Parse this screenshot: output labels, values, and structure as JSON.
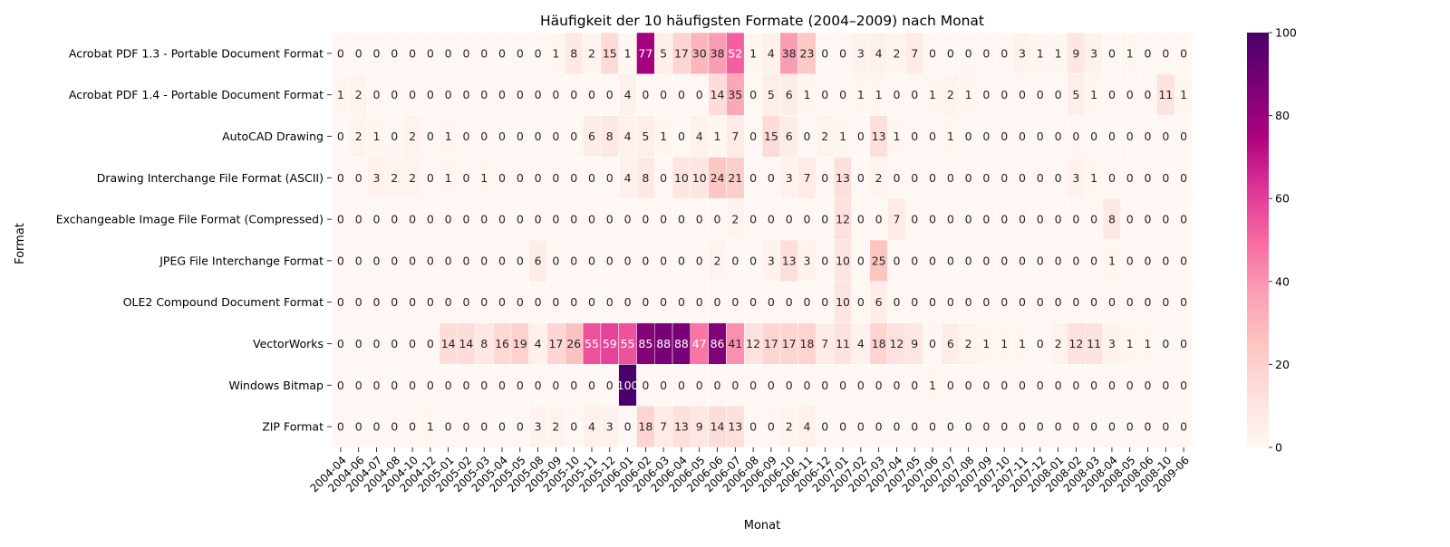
{
  "chart_data": {
    "type": "heatmap",
    "title": "Häufigkeit der 10 häufigsten Formate (2004–2009) nach Monat",
    "xlabel": "Monat",
    "ylabel": "Format",
    "rows": [
      "Acrobat PDF 1.3 - Portable Document Format",
      "Acrobat PDF 1.4 - Portable Document Format",
      "AutoCAD Drawing",
      "Drawing Interchange File Format (ASCII)",
      "Exchangeable Image File Format (Compressed)",
      "JPEG File Interchange Format",
      "OLE2 Compound Document Format",
      "VectorWorks",
      "Windows Bitmap",
      "ZIP Format"
    ],
    "columns": [
      "2004-04",
      "2004-06",
      "2004-07",
      "2004-08",
      "2004-10",
      "2004-12",
      "2005-01",
      "2005-02",
      "2005-03",
      "2005-04",
      "2005-05",
      "2005-08",
      "2005-09",
      "2005-10",
      "2005-11",
      "2005-12",
      "2006-01",
      "2006-02",
      "2006-03",
      "2006-04",
      "2006-05",
      "2006-06",
      "2006-07",
      "2006-08",
      "2006-09",
      "2006-10",
      "2006-11",
      "2006-12",
      "2007-01",
      "2007-02",
      "2007-03",
      "2007-04",
      "2007-05",
      "2007-06",
      "2007-07",
      "2007-08",
      "2007-09",
      "2007-10",
      "2007-11",
      "2007-12",
      "2008-01",
      "2008-02",
      "2008-03",
      "2008-04",
      "2008-05",
      "2008-06",
      "2008-10",
      "2009-06"
    ],
    "values": [
      [
        0,
        0,
        0,
        0,
        0,
        0,
        0,
        0,
        0,
        0,
        0,
        0,
        1,
        8,
        2,
        15,
        1,
        77,
        5,
        17,
        30,
        38,
        52,
        1,
        4,
        38,
        23,
        0,
        0,
        3,
        4,
        2,
        7,
        0,
        0,
        0,
        0,
        0,
        3,
        1,
        1,
        9,
        3,
        0,
        1,
        0,
        0,
        0
      ],
      [
        1,
        2,
        0,
        0,
        0,
        0,
        0,
        0,
        0,
        0,
        0,
        0,
        0,
        0,
        0,
        0,
        4,
        0,
        0,
        0,
        0,
        14,
        35,
        0,
        5,
        6,
        1,
        0,
        0,
        1,
        1,
        0,
        0,
        1,
        2,
        1,
        0,
        0,
        0,
        0,
        0,
        5,
        1,
        0,
        0,
        0,
        11,
        1
      ],
      [
        0,
        2,
        1,
        0,
        2,
        0,
        1,
        0,
        0,
        0,
        0,
        0,
        0,
        0,
        6,
        8,
        4,
        5,
        1,
        0,
        4,
        1,
        7,
        0,
        15,
        6,
        0,
        2,
        1,
        0,
        13,
        1,
        0,
        0,
        1,
        0,
        0,
        0,
        0,
        0,
        0,
        0,
        0,
        0,
        0,
        0,
        0,
        0
      ],
      [
        0,
        0,
        3,
        2,
        2,
        0,
        1,
        0,
        1,
        0,
        0,
        0,
        0,
        0,
        0,
        0,
        4,
        8,
        0,
        10,
        10,
        24,
        21,
        0,
        0,
        3,
        7,
        0,
        13,
        0,
        2,
        0,
        0,
        0,
        0,
        0,
        0,
        0,
        0,
        0,
        0,
        3,
        1,
        0,
        0,
        0,
        0,
        0
      ],
      [
        0,
        0,
        0,
        0,
        0,
        0,
        0,
        0,
        0,
        0,
        0,
        0,
        0,
        0,
        0,
        0,
        0,
        0,
        0,
        0,
        0,
        0,
        2,
        0,
        0,
        0,
        0,
        0,
        12,
        0,
        0,
        7,
        0,
        0,
        0,
        0,
        0,
        0,
        0,
        0,
        0,
        0,
        0,
        8,
        0,
        0,
        0,
        0
      ],
      [
        0,
        0,
        0,
        0,
        0,
        0,
        0,
        0,
        0,
        0,
        0,
        6,
        0,
        0,
        0,
        0,
        0,
        0,
        0,
        0,
        0,
        2,
        0,
        0,
        3,
        13,
        3,
        0,
        10,
        0,
        25,
        0,
        0,
        0,
        0,
        0,
        0,
        0,
        0,
        0,
        0,
        0,
        0,
        1,
        0,
        0,
        0,
        0
      ],
      [
        0,
        0,
        0,
        0,
        0,
        0,
        0,
        0,
        0,
        0,
        0,
        0,
        0,
        0,
        0,
        0,
        0,
        0,
        0,
        0,
        0,
        0,
        0,
        0,
        0,
        0,
        0,
        0,
        10,
        0,
        6,
        0,
        0,
        0,
        0,
        0,
        0,
        0,
        0,
        0,
        0,
        0,
        0,
        0,
        0,
        0,
        0,
        0
      ],
      [
        0,
        0,
        0,
        0,
        0,
        0,
        14,
        14,
        8,
        16,
        19,
        4,
        17,
        26,
        55,
        59,
        55,
        85,
        88,
        88,
        47,
        86,
        41,
        12,
        17,
        17,
        18,
        7,
        11,
        4,
        18,
        12,
        9,
        0,
        6,
        2,
        1,
        1,
        1,
        0,
        2,
        12,
        11,
        3,
        1,
        1,
        0,
        0
      ],
      [
        0,
        0,
        0,
        0,
        0,
        0,
        0,
        0,
        0,
        0,
        0,
        0,
        0,
        0,
        0,
        0,
        100,
        0,
        0,
        0,
        0,
        0,
        0,
        0,
        0,
        0,
        0,
        0,
        0,
        0,
        0,
        0,
        0,
        1,
        0,
        0,
        0,
        0,
        0,
        0,
        0,
        0,
        0,
        0,
        0,
        0,
        0,
        0
      ],
      [
        0,
        0,
        0,
        0,
        0,
        1,
        0,
        0,
        0,
        0,
        0,
        3,
        2,
        0,
        4,
        3,
        0,
        18,
        7,
        13,
        9,
        14,
        13,
        0,
        0,
        2,
        4,
        0,
        0,
        0,
        0,
        0,
        0,
        0,
        0,
        0,
        0,
        0,
        0,
        0,
        0,
        0,
        0,
        0,
        0,
        0,
        0,
        0
      ]
    ],
    "colorbar": {
      "min": 0,
      "max": 100,
      "ticks": [
        0,
        20,
        40,
        60,
        80,
        100
      ],
      "colormap": "RdPu",
      "stops": [
        "#fff7f3",
        "#fde0dd",
        "#fcc5c0",
        "#fa9fb5",
        "#f768a1",
        "#dd3497",
        "#ae017e",
        "#7a0177",
        "#49006a"
      ]
    },
    "annotations": "cell values shown",
    "grid": false
  }
}
